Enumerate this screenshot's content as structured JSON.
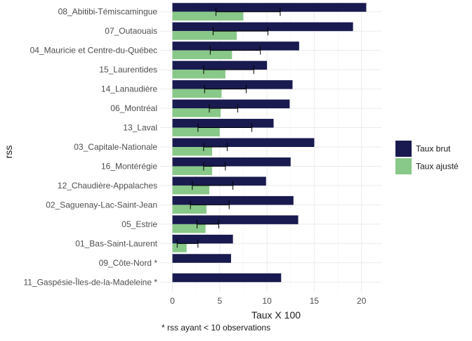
{
  "chart_data": {
    "type": "bar",
    "orientation": "horizontal",
    "xlabel": "Taux X 100",
    "ylabel": "rss",
    "xlim": [
      -1.3,
      22.1
    ],
    "xticks": [
      0,
      5,
      10,
      15,
      20
    ],
    "grid": true,
    "legend_position": "right",
    "categories": [
      "08_Abitibi-Témiscamingue",
      "07_Outaouais",
      "04_Mauricie et Centre-du-Québec",
      "15_Laurentides",
      "14_Lanaudière",
      "06_Montréal",
      "13_Laval",
      "03_Capitale-Nationale",
      "16_Montérégie",
      "12_Chaudière-Appalaches",
      "02_Saguenay-Lac-Saint-Jean",
      "05_Estrie",
      "01_Bas-Saint-Laurent",
      "09_Côte-Nord *",
      "11_Gaspésie-Îles-de-la-Madeleine *"
    ],
    "series": [
      {
        "name": "Taux brut",
        "color": "#191a4f",
        "values": [
          20.5,
          19.1,
          13.4,
          10.0,
          12.7,
          12.4,
          10.7,
          15.0,
          12.5,
          9.9,
          12.8,
          13.3,
          6.4,
          6.2,
          11.5
        ]
      },
      {
        "name": "Taux ajusté",
        "color": "#88c888",
        "values": [
          7.5,
          6.8,
          6.3,
          5.6,
          5.2,
          5.1,
          5.0,
          4.2,
          4.2,
          3.9,
          3.6,
          3.5,
          1.5,
          null,
          null
        ],
        "error_low": [
          4.6,
          4.3,
          4.0,
          3.3,
          3.4,
          3.9,
          2.7,
          3.3,
          3.3,
          2.1,
          1.9,
          2.6,
          0.5,
          null,
          null
        ],
        "error_high": [
          11.4,
          10.1,
          9.3,
          8.6,
          7.8,
          6.9,
          8.4,
          5.8,
          5.6,
          6.4,
          6.0,
          4.9,
          2.7,
          null,
          null
        ]
      }
    ],
    "caption": "* rss ayant < 10 observations"
  }
}
